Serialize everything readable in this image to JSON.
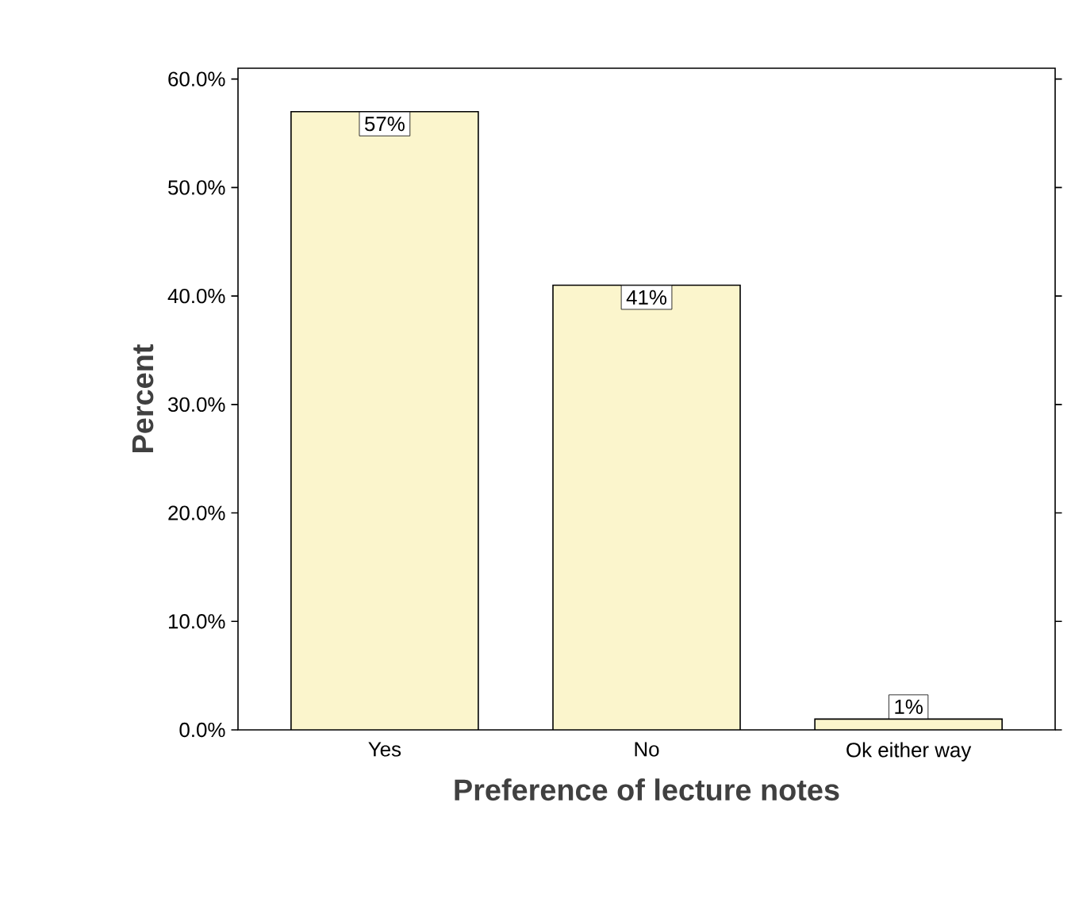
{
  "chart_data": {
    "type": "bar",
    "xlabel": "Preference of lecture notes",
    "ylabel": "Percent",
    "categories": [
      "Yes",
      "No",
      "Ok either way"
    ],
    "values": [
      57,
      41,
      1
    ],
    "value_labels": [
      "57%",
      "41%",
      "1%"
    ],
    "color": "#fbf5cc",
    "ylim": [
      0,
      61
    ],
    "yticks": [
      {
        "value": 0,
        "label": "0.0%"
      },
      {
        "value": 10,
        "label": "10.0%"
      },
      {
        "value": 20,
        "label": "20.0%"
      },
      {
        "value": 30,
        "label": "30.0%"
      },
      {
        "value": 40,
        "label": "40.0%"
      },
      {
        "value": 50,
        "label": "50.0%"
      },
      {
        "value": 60,
        "label": "60.0%"
      }
    ],
    "grid": false
  }
}
